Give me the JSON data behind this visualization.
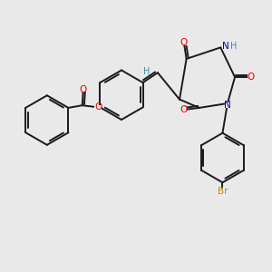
{
  "bg_color": "#e9e9e9",
  "bond_color": "#1a1a1a",
  "bond_width": 1.4,
  "dbo": 0.05,
  "colors": {
    "O": "#ee0000",
    "N": "#0000cc",
    "H_nh": "#3d9090",
    "Br": "#cc8800",
    "C": "#1a1a1a"
  },
  "figsize": [
    3.0,
    3.0
  ],
  "dpi": 100,
  "xlim": [
    -0.3,
    5.2
  ],
  "ylim": [
    -2.8,
    2.4
  ]
}
